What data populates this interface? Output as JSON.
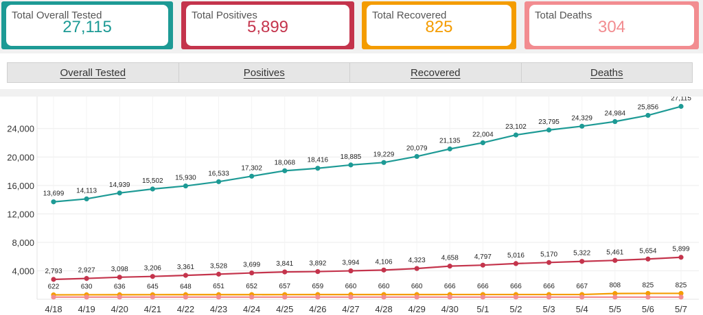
{
  "cards": [
    {
      "label": "Total Overall Tested",
      "value": "27,115"
    },
    {
      "label": "Total Positives",
      "value": "5,899"
    },
    {
      "label": "Total Recovered",
      "value": "825"
    },
    {
      "label": "Total Deaths",
      "value": "304"
    }
  ],
  "tabs": [
    "Overall Tested",
    "Positives",
    "Recovered",
    "Deaths"
  ],
  "colors": {
    "tested": "#1d9a95",
    "positives": "#c4344c",
    "recovered": "#f49c00",
    "deaths": "#f28c90"
  },
  "chart_data": {
    "type": "line",
    "categories": [
      "4/18",
      "4/19",
      "4/20",
      "4/21",
      "4/22",
      "4/23",
      "4/24",
      "4/25",
      "4/26",
      "4/27",
      "4/28",
      "4/29",
      "4/30",
      "5/1",
      "5/2",
      "5/3",
      "5/4",
      "5/5",
      "5/6",
      "5/7"
    ],
    "series": [
      {
        "key": "tested",
        "values": [
          13699,
          14113,
          14939,
          15502,
          15930,
          16533,
          17302,
          18068,
          18416,
          18885,
          19229,
          20079,
          21135,
          22004,
          23102,
          23795,
          24329,
          24984,
          25856,
          27115
        ],
        "labels": [
          "13,699",
          "14,113",
          "14,939",
          "15,502",
          "15,930",
          "16,533",
          "17,302",
          "18,068",
          "18,416",
          "18,885",
          "19,229",
          "20,079",
          "21,135",
          "22,004",
          "23,102",
          "23,795",
          "24,329",
          "24,984",
          "25,856",
          "27,115"
        ]
      },
      {
        "key": "positives",
        "values": [
          2793,
          2927,
          3098,
          3206,
          3361,
          3528,
          3699,
          3841,
          3892,
          3994,
          4106,
          4323,
          4658,
          4797,
          5016,
          5170,
          5322,
          5461,
          5654,
          5899
        ],
        "labels": [
          "2,793",
          "2,927",
          "3,098",
          "3,206",
          "3,361",
          "3,528",
          "3,699",
          "3,841",
          "3,892",
          "3,994",
          "4,106",
          "4,323",
          "4,658",
          "4,797",
          "5,016",
          "5,170",
          "5,322",
          "5,461",
          "5,654",
          "5,899"
        ]
      },
      {
        "key": "recovered",
        "values": [
          622,
          630,
          636,
          645,
          648,
          651,
          652,
          657,
          659,
          660,
          660,
          660,
          666,
          666,
          666,
          666,
          667,
          808,
          825,
          825
        ],
        "labels": [
          "622",
          "630",
          "636",
          "645",
          "648",
          "651",
          "652",
          "657",
          "659",
          "660",
          "660",
          "660",
          "666",
          "666",
          "666",
          "666",
          "667",
          "808",
          "825",
          "825"
        ]
      },
      {
        "key": "deaths",
        "values": [
          300,
          300,
          300,
          300,
          300,
          300,
          300,
          300,
          300,
          300,
          300,
          300,
          300,
          300,
          300,
          300,
          300,
          300,
          300,
          304
        ]
      }
    ],
    "y_ticks": [
      4000,
      8000,
      12000,
      16000,
      20000,
      24000
    ],
    "y_tick_labels": [
      "4,000",
      "8,000",
      "12,000",
      "16,000",
      "20,000",
      "24,000"
    ],
    "ylim": [
      0,
      28500
    ],
    "grid": true,
    "legend": "none"
  }
}
